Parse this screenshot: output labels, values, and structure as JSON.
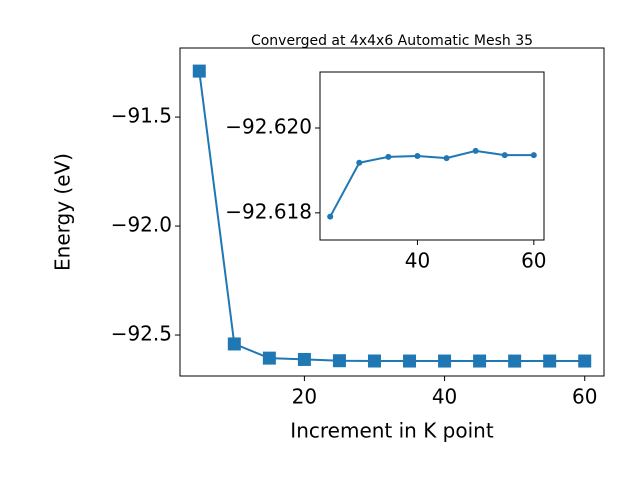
{
  "chart_data": [
    {
      "type": "line",
      "title": "Converged at 4x4x6 Automatic Mesh 35",
      "xlabel": "Increment in K point",
      "ylabel": "Energy (eV)",
      "x": [
        5,
        10,
        15,
        20,
        25,
        30,
        35,
        40,
        45,
        50,
        55,
        60
      ],
      "values": [
        -91.289,
        -92.541,
        -92.606,
        -92.612,
        -92.61791,
        -92.61918,
        -92.61932,
        -92.61934,
        -92.61929,
        -92.61946,
        -92.61936,
        -92.61936
      ],
      "color": "#1f77b4",
      "marker": "square",
      "xlim": [
        2.25,
        62.75
      ],
      "xticks": [
        20,
        40,
        60
      ],
      "ylim": [
        -92.688,
        -91.183
      ],
      "yticks": [
        {
          "value": -91.5,
          "label": "−91.5"
        },
        {
          "value": -92.0,
          "label": "−92.0"
        },
        {
          "value": -92.5,
          "label": "−92.5"
        }
      ]
    },
    {
      "type": "line",
      "x": [
        25,
        30,
        35,
        40,
        45,
        50,
        55,
        60
      ],
      "values": [
        -92.61791,
        -92.61918,
        -92.61932,
        -92.61934,
        -92.61929,
        -92.61946,
        -92.61936,
        -92.61936
      ],
      "color": "#1f77b4",
      "marker": "circle",
      "xlim": [
        23.25,
        61.75
      ],
      "xticks": [
        40,
        60
      ],
      "ylim": [
        -92.61736,
        -92.62132
      ],
      "yticks": [
        {
          "value": -92.62,
          "label": "−92.620"
        },
        {
          "value": -92.618,
          "label": "−92.618"
        }
      ]
    }
  ]
}
